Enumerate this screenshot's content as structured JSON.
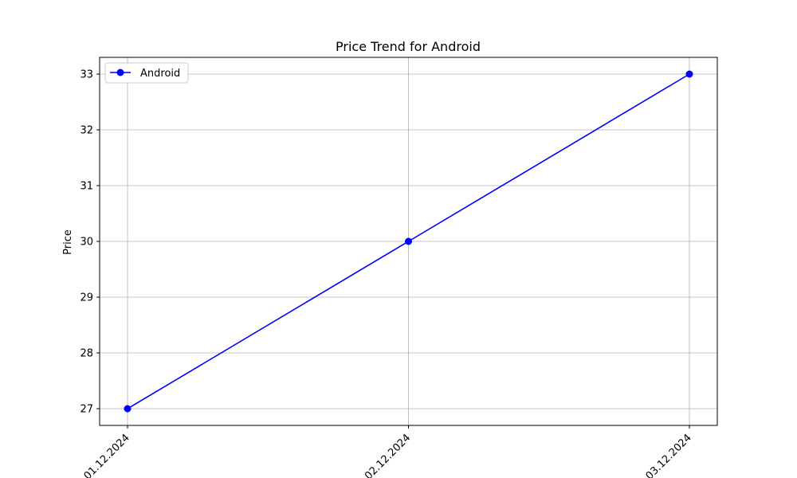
{
  "chart_data": {
    "type": "line",
    "title": "Price Trend for Android",
    "xlabel": "",
    "ylabel": "Price",
    "categories": [
      "01.12.2024",
      "02.12.2024",
      "03.12.2024"
    ],
    "series": [
      {
        "name": "Android",
        "values": [
          27,
          30,
          33
        ],
        "color": "#0000ff",
        "marker": "circle"
      }
    ],
    "ylim": [
      26.7,
      33.3
    ],
    "yticks": [
      27,
      28,
      29,
      30,
      31,
      32,
      33
    ],
    "grid": true,
    "legend_position": "top-left",
    "x_tick_rotation_deg": 45
  }
}
